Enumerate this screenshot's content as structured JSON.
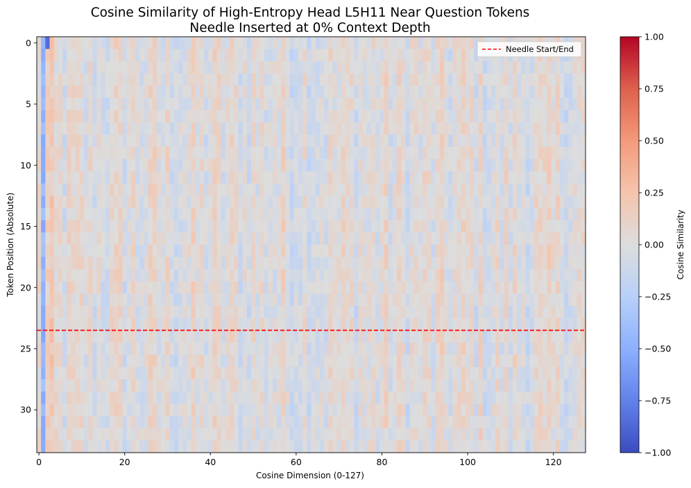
{
  "chart_data": {
    "type": "heatmap",
    "title_line1": "Cosine Similarity of High-Entropy Head L5H11 Near Question Tokens",
    "title_line2": "Needle Inserted at 0% Context Depth",
    "xlabel": "Cosine Dimension (0-127)",
    "ylabel": "Token Position (Absolute)",
    "x_range": [
      -0.5,
      127.5
    ],
    "y_range": [
      -0.5,
      33.5
    ],
    "n_cols": 128,
    "n_rows": 34,
    "x_ticks": [
      0,
      20,
      40,
      60,
      80,
      100,
      120
    ],
    "y_ticks": [
      0,
      5,
      10,
      15,
      20,
      25,
      30
    ],
    "needle_line_y": 23.5,
    "legend": {
      "label": "Needle Start/End",
      "placement": "upper right",
      "color": "#ff0000",
      "style": "dashed"
    },
    "colorbar": {
      "label": "Cosine Similarity",
      "vmin": -1.0,
      "vmax": 1.0,
      "ticks": [
        1.0,
        0.75,
        0.5,
        0.25,
        0.0,
        -0.25,
        -0.5,
        -0.75,
        -1.0
      ],
      "tick_labels": [
        "1.00",
        "0.75",
        "0.50",
        "0.25",
        "0.00",
        "−0.25",
        "−0.50",
        "−0.75",
        "−1.00"
      ],
      "colormap": "coolwarm"
    },
    "column_bias": {
      "1": -0.45,
      "2": 0.12,
      "3": 0.2
    },
    "cell_overrides": [
      {
        "row": 0,
        "col": 2,
        "value": -0.85
      }
    ],
    "value_spread": 0.22
  }
}
